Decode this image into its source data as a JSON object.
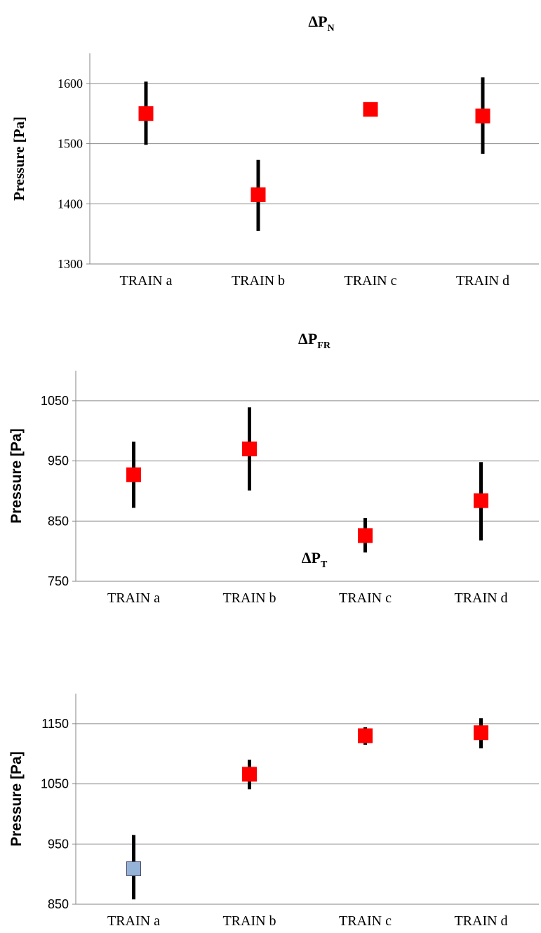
{
  "chart_data": [
    {
      "type": "scatter",
      "title": "ΔP",
      "title_subscript": "N",
      "ylabel": "Pressure [Pa]",
      "ylim": [
        1300,
        1650
      ],
      "yticks": [
        1300,
        1400,
        1500,
        1600
      ],
      "grid": true,
      "categories": [
        "TRAIN a",
        "TRAIN b",
        "TRAIN c",
        "TRAIN d"
      ],
      "series": [
        {
          "values": [
            1550,
            1415,
            1557,
            1546
          ],
          "error_low": [
            1498,
            1355,
            1557,
            1483
          ],
          "error_high": [
            1603,
            1473,
            1557,
            1610
          ],
          "marker_colors": [
            "#ff0000",
            "#ff0000",
            "#ff0000",
            "#ff0000"
          ]
        }
      ]
    },
    {
      "type": "scatter",
      "title": "ΔP",
      "title_subscript": "FR",
      "ylabel": "Pressure [Pa]",
      "ylim": [
        750,
        1100
      ],
      "yticks": [
        750,
        850,
        950,
        1050
      ],
      "grid": true,
      "categories": [
        "TRAIN a",
        "TRAIN b",
        "TRAIN c",
        "TRAIN d"
      ],
      "series": [
        {
          "values": [
            927,
            970,
            826,
            884
          ],
          "error_low": [
            872,
            901,
            798,
            818
          ],
          "error_high": [
            982,
            1039,
            855,
            948
          ],
          "marker_colors": [
            "#ff0000",
            "#ff0000",
            "#ff0000",
            "#ff0000"
          ]
        }
      ]
    },
    {
      "type": "scatter",
      "title": "ΔP",
      "title_subscript": "T",
      "ylabel": "Pressure [Pa]",
      "ylim": [
        850,
        1200
      ],
      "yticks": [
        850,
        950,
        1050,
        1150
      ],
      "grid": true,
      "categories": [
        "TRAIN a",
        "TRAIN b",
        "TRAIN c",
        "TRAIN d"
      ],
      "series": [
        {
          "values": [
            909,
            1066,
            1130,
            1135
          ],
          "error_low": [
            858,
            1041,
            1115,
            1109
          ],
          "error_high": [
            965,
            1090,
            1144,
            1159
          ],
          "marker_colors": [
            "#95b3d7",
            "#ff0000",
            "#ff0000",
            "#ff0000"
          ]
        }
      ]
    }
  ],
  "colors": {
    "marker": "#ff0000",
    "marker_alt": "#95b3d7",
    "error_bar": "#000000",
    "gridline": "#8c8c8c",
    "axis": "#868686"
  }
}
